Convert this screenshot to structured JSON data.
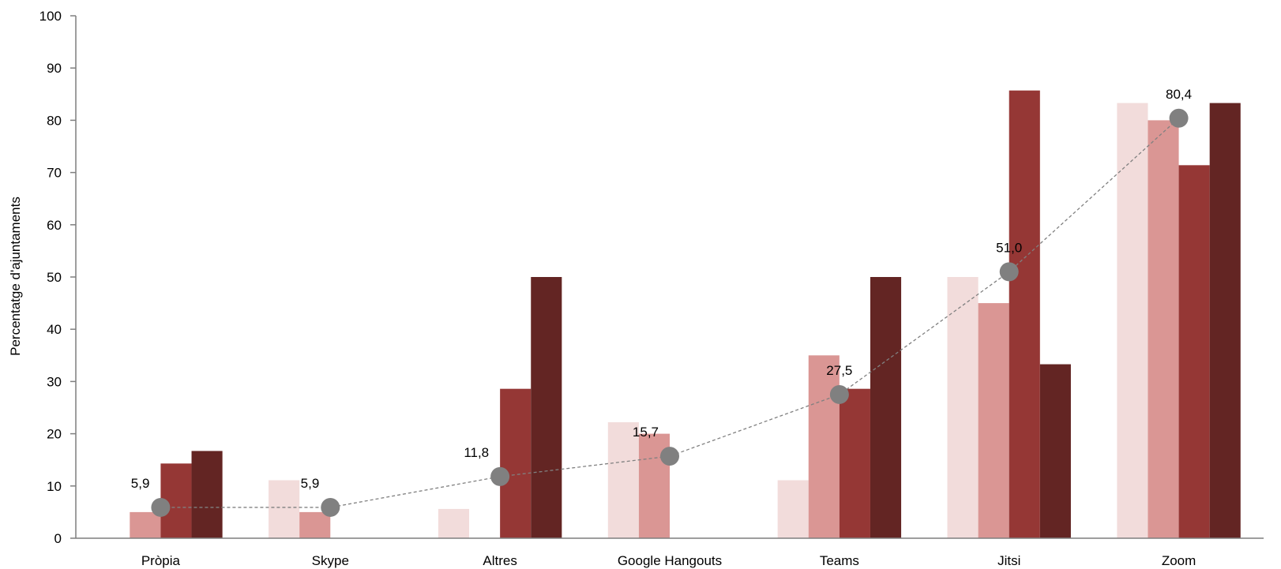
{
  "chart_data": {
    "type": "bar",
    "title": "",
    "xlabel": "",
    "ylabel": "Percentatge d'ajuntaments",
    "ylim": [
      0,
      100
    ],
    "yticks": [
      0,
      10,
      20,
      30,
      40,
      50,
      60,
      70,
      80,
      90,
      100
    ],
    "grid": false,
    "legend": "none",
    "categories": [
      "Pròpia",
      "Skype",
      "Altres",
      "Google Hangouts",
      "Teams",
      "Jitsi",
      "Zoom"
    ],
    "series": [
      {
        "color": "#f2dcdb",
        "values": [
          0,
          11.1,
          5.6,
          22.2,
          11.1,
          50.0,
          83.3
        ]
      },
      {
        "color": "#da9694",
        "values": [
          5.0,
          5.0,
          0,
          20.0,
          35.0,
          45.0,
          80.0
        ]
      },
      {
        "color": "#953735",
        "values": [
          14.3,
          0,
          28.6,
          0,
          28.6,
          85.7,
          71.4
        ]
      },
      {
        "color": "#632523",
        "values": [
          16.7,
          0,
          50.0,
          0,
          50.0,
          33.3,
          83.3
        ]
      }
    ],
    "line": {
      "type": "line",
      "style": "dashed",
      "color": "#808080",
      "values": [
        5.9,
        5.9,
        11.8,
        15.7,
        27.5,
        51.0,
        80.4
      ],
      "labels": [
        "5,9",
        "5,9",
        "11,8",
        "15,7",
        "27,5",
        "51,0",
        "80,4"
      ]
    }
  }
}
